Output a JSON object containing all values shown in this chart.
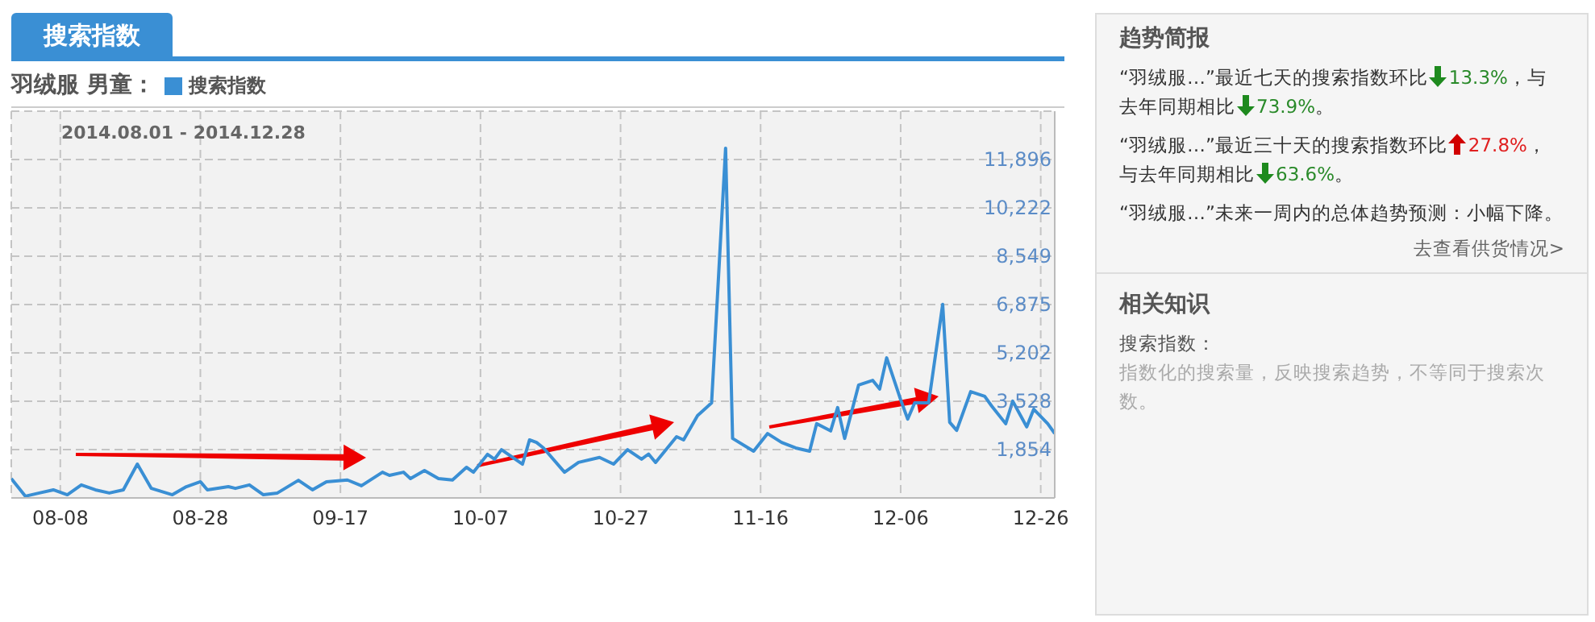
{
  "chart_data": {
    "type": "line",
    "title": "搜索指数",
    "subtitle": "羽绒服 男童：",
    "annotations": [
      "2014.08.01 - 2014.12.28",
      "趋势简报",
      "“羽绒服…”最近七天的搜索指数环比",
      "13.3%",
      "，与去年同期相比",
      "73.9%",
      "。",
      "“羽绒服…”最近三十天的搜索指数环比",
      "27.8%",
      "，与去年同期相比",
      "63.6%",
      "。",
      "“羽绒服…”未来一周内的总体趋势预测：小幅下降。",
      "去查看供货情况>",
      "相关知识",
      "搜索指数：",
      "指数化的搜索量，反映搜索趋势，不等同于搜索次数。"
    ],
    "x": [
      "2014-08-01",
      "2014-08-03",
      "2014-08-05",
      "2014-08-07",
      "2014-08-09",
      "2014-08-11",
      "2014-08-13",
      "2014-08-15",
      "2014-08-17",
      "2014-08-19",
      "2014-08-21",
      "2014-08-24",
      "2014-08-26",
      "2014-08-28",
      "2014-08-29",
      "2014-09-01",
      "2014-09-02",
      "2014-09-04",
      "2014-09-06",
      "2014-09-08",
      "2014-09-11",
      "2014-09-13",
      "2014-09-15",
      "2014-09-18",
      "2014-09-20",
      "2014-09-23",
      "2014-09-24",
      "2014-09-26",
      "2014-09-27",
      "2014-09-29",
      "2014-10-01",
      "2014-10-03",
      "2014-10-05",
      "2014-10-06",
      "2014-10-08",
      "2014-10-09",
      "2014-10-10",
      "2014-10-13",
      "2014-10-14",
      "2014-10-15",
      "2014-10-16",
      "2014-10-19",
      "2014-10-21",
      "2014-10-24",
      "2014-10-26",
      "2014-10-28",
      "2014-10-30",
      "2014-10-31",
      "2014-11-01",
      "2014-11-04",
      "2014-11-05",
      "2014-11-07",
      "2014-11-09",
      "2014-11-11",
      "2014-11-12",
      "2014-11-15",
      "2014-11-17",
      "2014-11-19",
      "2014-11-21",
      "2014-11-23",
      "2014-11-24",
      "2014-11-26",
      "2014-11-27",
      "2014-11-28",
      "2014-11-30",
      "2014-12-02",
      "2014-12-03",
      "2014-12-04",
      "2014-12-06",
      "2014-12-07",
      "2014-12-08",
      "2014-12-10",
      "2014-12-12",
      "2014-12-13",
      "2014-12-14",
      "2014-12-16",
      "2014-12-18",
      "2014-12-19",
      "2014-12-21",
      "2014-12-22",
      "2014-12-24",
      "2014-12-25",
      "2014-12-27",
      "2014-12-28"
    ],
    "series": [
      {
        "name": "搜索指数",
        "color": "#3a8fd4",
        "values": [
          850,
          240,
          350,
          460,
          290,
          630,
          460,
          350,
          460,
          1350,
          510,
          290,
          570,
          740,
          460,
          570,
          510,
          630,
          290,
          350,
          790,
          460,
          740,
          800,
          600,
          1070,
          960,
          1070,
          850,
          1130,
          850,
          800,
          1240,
          1070,
          1690,
          1520,
          1850,
          1350,
          2190,
          2100,
          1910,
          1070,
          1410,
          1580,
          1350,
          1850,
          1520,
          1700,
          1410,
          2300,
          2190,
          3030,
          3470,
          12290,
          2240,
          1800,
          2410,
          2100,
          1910,
          1800,
          2750,
          2500,
          3310,
          2240,
          4090,
          4250,
          3950,
          5030,
          3580,
          2910,
          3470,
          3470,
          6880,
          2800,
          2520,
          3860,
          3700,
          3360,
          2750,
          3530,
          2640,
          3250,
          2750,
          2410
        ]
      }
    ],
    "xlim": [
      "2014-08-01",
      "2014-12-28"
    ],
    "xticks": [
      {
        "value": "2014-08-08",
        "label": "08-08"
      },
      {
        "value": "2014-08-28",
        "label": "08-28"
      },
      {
        "value": "2014-09-17",
        "label": "09-17"
      },
      {
        "value": "2014-10-07",
        "label": "10-07"
      },
      {
        "value": "2014-10-27",
        "label": "10-27"
      },
      {
        "value": "2014-11-16",
        "label": "11-16"
      },
      {
        "value": "2014-12-06",
        "label": "12-06"
      },
      {
        "value": "2014-12-26",
        "label": "12-26"
      }
    ],
    "ylim": [
      180,
      13570
    ],
    "yticks": [
      {
        "value": 1854,
        "label": "1,854"
      },
      {
        "value": 3528,
        "label": "3,528"
      },
      {
        "value": 5202,
        "label": "5,202"
      },
      {
        "value": 6875,
        "label": "6,875"
      },
      {
        "value": 8549,
        "label": "8,549"
      },
      {
        "value": 10222,
        "label": "10,222"
      },
      {
        "value": 11896,
        "label": "11,896"
      }
    ],
    "grid": true,
    "legend": "top left",
    "marker": "none",
    "line_style": "solid"
  }
}
